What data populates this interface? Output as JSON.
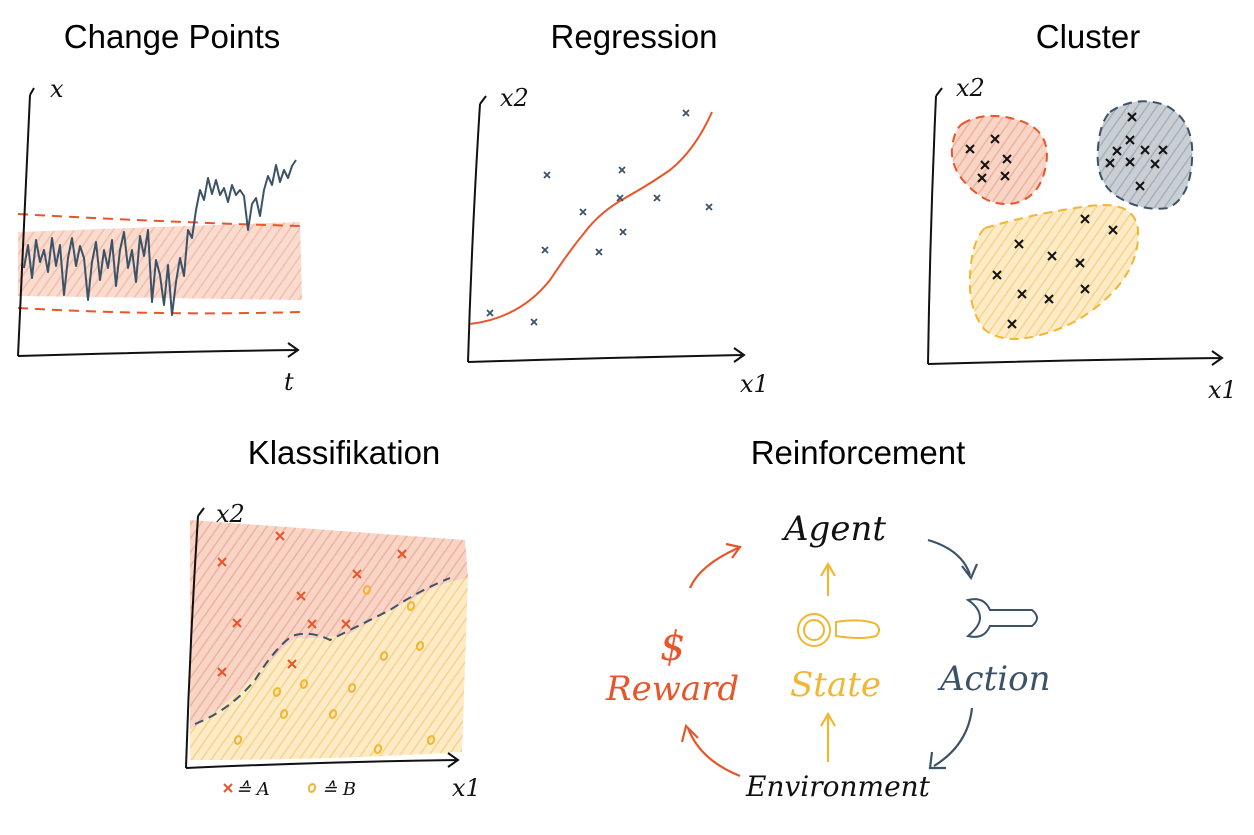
{
  "titles": {
    "change_points": "Change Points",
    "regression": "Regression",
    "cluster": "Cluster",
    "classification": "Klassifikation",
    "reinforcement": "Reinforcement"
  },
  "axes": {
    "cp_y": "x",
    "cp_x": "t",
    "reg_y": "x2",
    "reg_x": "x1",
    "cl_y": "x2",
    "cl_x": "x1",
    "kl_y": "x2",
    "kl_x": "x1"
  },
  "legend": {
    "a": "≙ A",
    "b": "≙ B"
  },
  "reinforcement": {
    "agent": "Agent",
    "action": "Action",
    "environment": "Environment",
    "reward": "Reward",
    "state": "State",
    "reward_symbol": "$"
  },
  "colors": {
    "orange": "#e8552a",
    "orange_fill": "#f6c7b5",
    "yellow": "#f2b632",
    "yellow_fill": "#fbe2ae",
    "slate": "#3c5266",
    "slate_fill": "#b9c1c9",
    "black": "#111111"
  }
}
